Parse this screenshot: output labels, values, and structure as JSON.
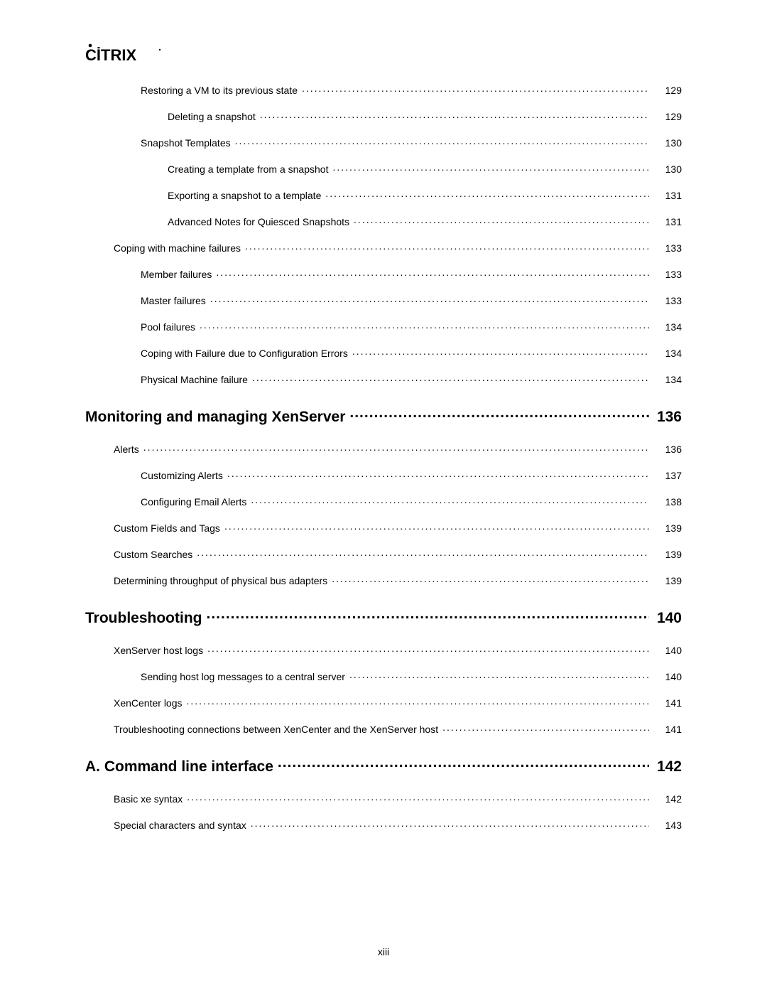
{
  "logo": {
    "text": "CITRIX",
    "color": "#000000"
  },
  "page_label": "xiii",
  "colors": {
    "background": "#ffffff",
    "text": "#000000",
    "leader": "#000000"
  },
  "typography": {
    "heading_fontsize_pt": 16,
    "body_fontsize_pt": 10,
    "font_family": "Arial"
  },
  "toc": {
    "entries": [
      {
        "level": 2,
        "title": "Restoring a VM to its previous state",
        "page": "129"
      },
      {
        "level": 3,
        "title": "Deleting a snapshot",
        "page": "129"
      },
      {
        "level": 2,
        "title": "Snapshot Templates",
        "page": "130"
      },
      {
        "level": 3,
        "title": "Creating a template from a snapshot",
        "page": "130"
      },
      {
        "level": 3,
        "title": "Exporting a snapshot to a template",
        "page": "131"
      },
      {
        "level": 3,
        "title": "Advanced Notes for Quiesced Snapshots",
        "page": "131"
      },
      {
        "level": 1,
        "title": "Coping with machine failures",
        "page": "133"
      },
      {
        "level": 2,
        "title": "Member failures",
        "page": "133"
      },
      {
        "level": 2,
        "title": "Master failures",
        "page": "133"
      },
      {
        "level": 2,
        "title": "Pool failures",
        "page": "134"
      },
      {
        "level": 2,
        "title": "Coping with Failure due to Configuration Errors",
        "page": "134"
      },
      {
        "level": 2,
        "title": "Physical Machine failure",
        "page": "134"
      },
      {
        "level": 0,
        "title": "Monitoring and managing XenServer",
        "page": "136"
      },
      {
        "level": 1,
        "title": "Alerts",
        "page": "136"
      },
      {
        "level": 2,
        "title": "Customizing Alerts",
        "page": "137"
      },
      {
        "level": 2,
        "title": "Configuring Email Alerts",
        "page": "138"
      },
      {
        "level": 1,
        "title": "Custom Fields and Tags",
        "page": "139"
      },
      {
        "level": 1,
        "title": "Custom Searches",
        "page": "139"
      },
      {
        "level": 1,
        "title": "Determining throughput of physical bus adapters",
        "page": "139"
      },
      {
        "level": 0,
        "title": "Troubleshooting",
        "page": "140"
      },
      {
        "level": 1,
        "title": "XenServer host logs",
        "page": "140"
      },
      {
        "level": 2,
        "title": "Sending host log messages to a central server",
        "page": "140"
      },
      {
        "level": 1,
        "title": "XenCenter logs",
        "page": "141"
      },
      {
        "level": 1,
        "title": "Troubleshooting connections between XenCenter and the XenServer host",
        "page": "141"
      },
      {
        "level": 0,
        "title": "A. Command line interface",
        "page": "142"
      },
      {
        "level": 1,
        "title": "Basic xe syntax",
        "page": "142"
      },
      {
        "level": 1,
        "title": "Special characters and syntax",
        "page": "143"
      }
    ]
  }
}
